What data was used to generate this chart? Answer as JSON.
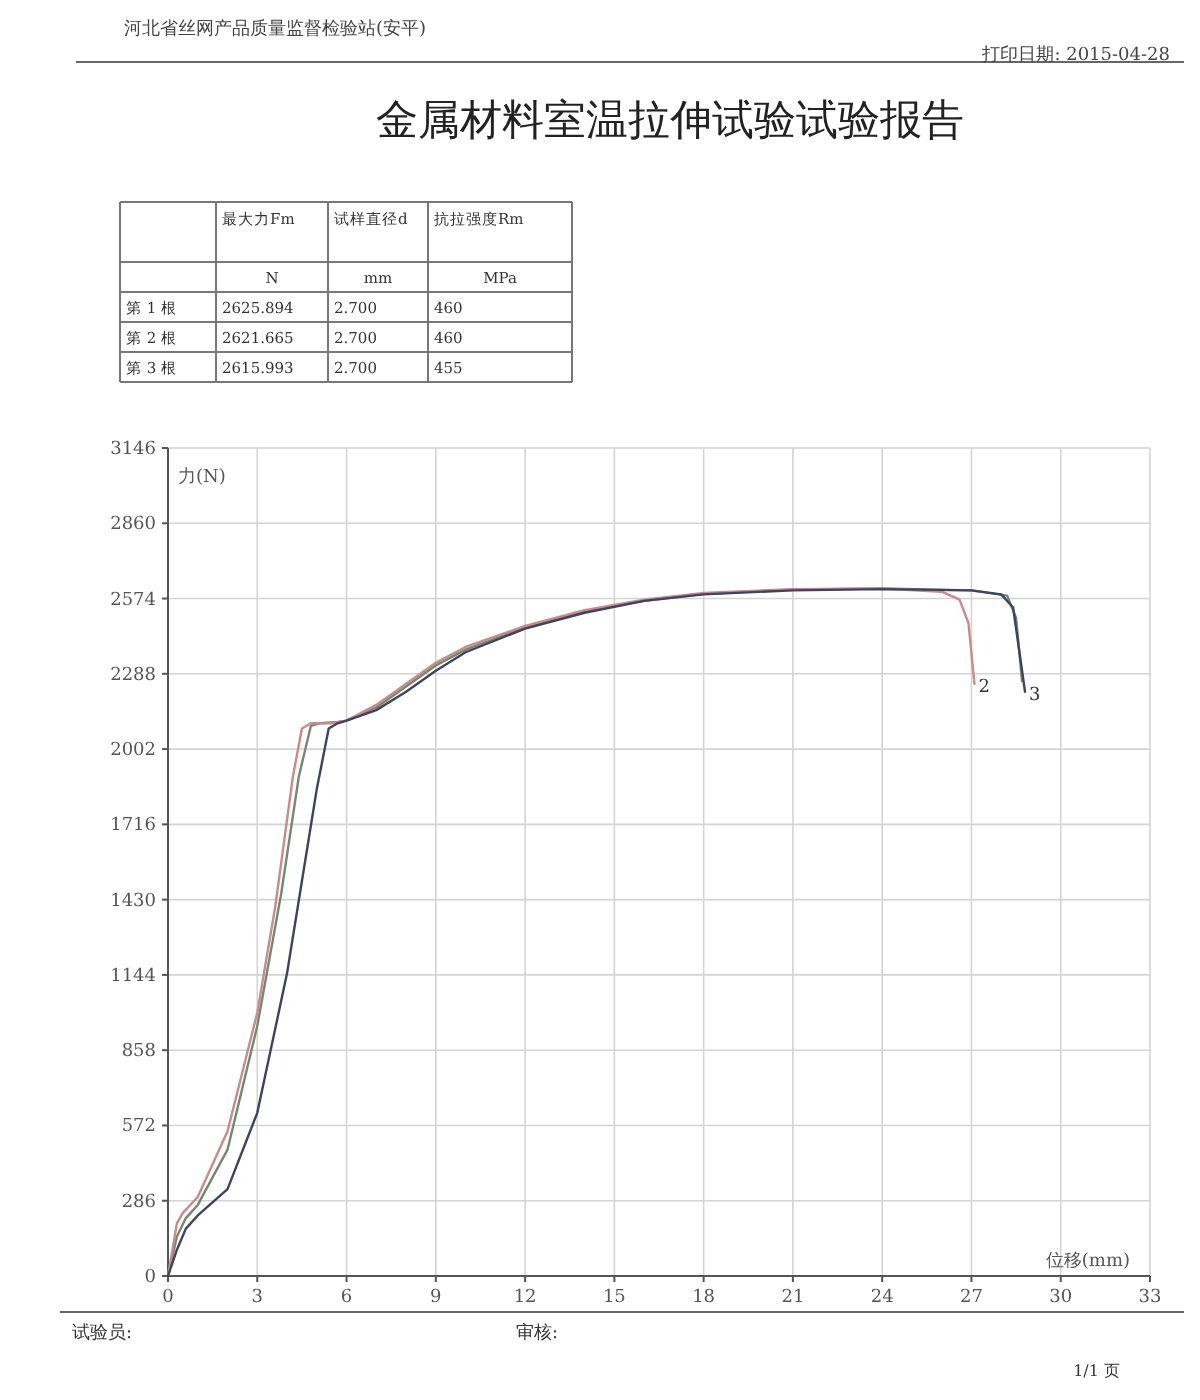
{
  "chart_data": [
    {
      "type": "other",
      "title": "金属材料室温拉伸试验试验报告",
      "annotations": [
        "河北省丝网产品质量监督检验站(安平)",
        "打印日期: 2015-04-28",
        "最大力Fm",
        "试样直径d",
        "抗拉强度Rm",
        "N",
        "mm",
        "MPa",
        "第 1 根",
        "2625.894",
        "2.700",
        "460",
        "第 2 根",
        "2621.665",
        "2.700",
        "460",
        "第 3 根",
        "2615.993",
        "2.700",
        "455"
      ]
    },
    {
      "type": "line",
      "xlabel": "位移(mm)",
      "ylabel": "力(N)",
      "xlim": [
        0,
        33
      ],
      "xticks": [
        0,
        3,
        6,
        9,
        12,
        15,
        18,
        21,
        24,
        27,
        30,
        33
      ],
      "ylim": [
        0,
        3146
      ],
      "yticks": [
        0,
        286,
        572,
        858,
        1144,
        1430,
        1716,
        2002,
        2288,
        2574,
        2860,
        3146
      ],
      "grid": true,
      "annotations": [
        "试验员:",
        "审核:",
        "1/1 页"
      ],
      "series": [
        {
          "color": "#6f8a72",
          "x": [
            0,
            0.3,
            0.6,
            1,
            2,
            3,
            3.8,
            4.4,
            4.8,
            5.1,
            5.7,
            6,
            7,
            8,
            9,
            10,
            12,
            14,
            16,
            18,
            21,
            24,
            27,
            28.2,
            28.5,
            28.7
          ],
          "values": [
            0,
            150,
            220,
            270,
            480,
            950,
            1450,
            1900,
            2090,
            2100,
            2105,
            2110,
            2160,
            2240,
            2320,
            2380,
            2465,
            2525,
            2565,
            2592,
            2608,
            2612,
            2605,
            2585,
            2500,
            2260
          ]
        },
        {
          "name": "2",
          "color": "#cc8a86",
          "x": [
            0,
            0.3,
            0.5,
            1,
            2,
            3,
            3.6,
            4.2,
            4.5,
            4.8,
            5.5,
            6,
            7,
            8,
            9,
            10,
            12,
            14,
            16,
            18,
            21,
            24,
            26,
            26.6,
            26.9,
            27.1
          ],
          "values": [
            0,
            200,
            240,
            300,
            550,
            1000,
            1400,
            1900,
            2080,
            2100,
            2100,
            2110,
            2170,
            2250,
            2330,
            2390,
            2470,
            2530,
            2570,
            2595,
            2610,
            2612,
            2600,
            2570,
            2480,
            2250
          ]
        },
        {
          "name": "3",
          "color": "#3f4260",
          "x": [
            0,
            0.3,
            0.6,
            1,
            2,
            3,
            4,
            4.5,
            5,
            5.4,
            5.7,
            6,
            7,
            8,
            9,
            10,
            12,
            14,
            16,
            18,
            21,
            24,
            27,
            28,
            28.4,
            28.7,
            28.8
          ],
          "values": [
            0,
            100,
            180,
            230,
            330,
            620,
            1150,
            1500,
            1850,
            2080,
            2100,
            2110,
            2150,
            2220,
            2300,
            2370,
            2460,
            2520,
            2565,
            2590,
            2605,
            2610,
            2605,
            2590,
            2540,
            2300,
            2220
          ]
        }
      ]
    }
  ]
}
